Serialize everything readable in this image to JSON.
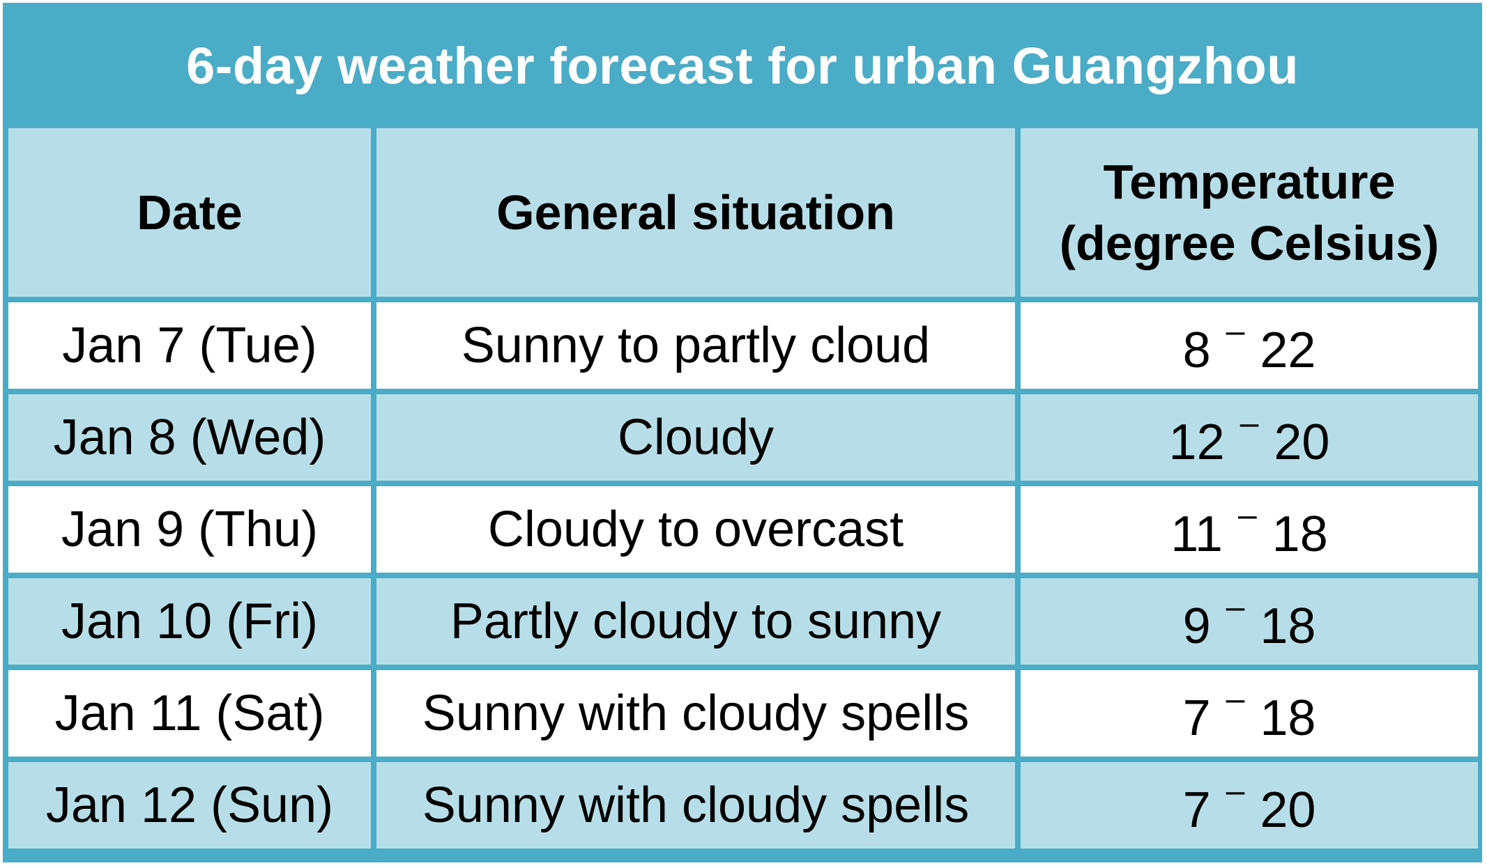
{
  "title": "6-day weather forecast for urban Guangzhou",
  "headers": {
    "date": "Date",
    "situation": "General situation",
    "temperature_line1": "Temperature",
    "temperature_line2": "(degree Celsius)"
  },
  "rows": [
    {
      "date": "Jan 7 (Tue)",
      "situation": "Sunny to partly cloud",
      "low": "8",
      "high": "22"
    },
    {
      "date": "Jan 8 (Wed)",
      "situation": "Cloudy",
      "low": "12",
      "high": "20"
    },
    {
      "date": "Jan 9 (Thu)",
      "situation": "Cloudy to overcast",
      "low": "11",
      "high": "18"
    },
    {
      "date": "Jan 10 (Fri)",
      "situation": "Partly cloudy to sunny",
      "low": "9",
      "high": "18"
    },
    {
      "date": "Jan 11 (Sat)",
      "situation": "Sunny with cloudy spells",
      "low": "7",
      "high": "18"
    },
    {
      "date": "Jan 12 (Sun)",
      "situation": "Sunny with cloudy spells",
      "low": "7",
      "high": "20"
    }
  ],
  "range_separator": "–",
  "colors": {
    "title_bar": "#4aacc6",
    "header_fill": "#b7dee8",
    "band_fill": "#b7dee8",
    "plain_fill": "#ffffff"
  }
}
